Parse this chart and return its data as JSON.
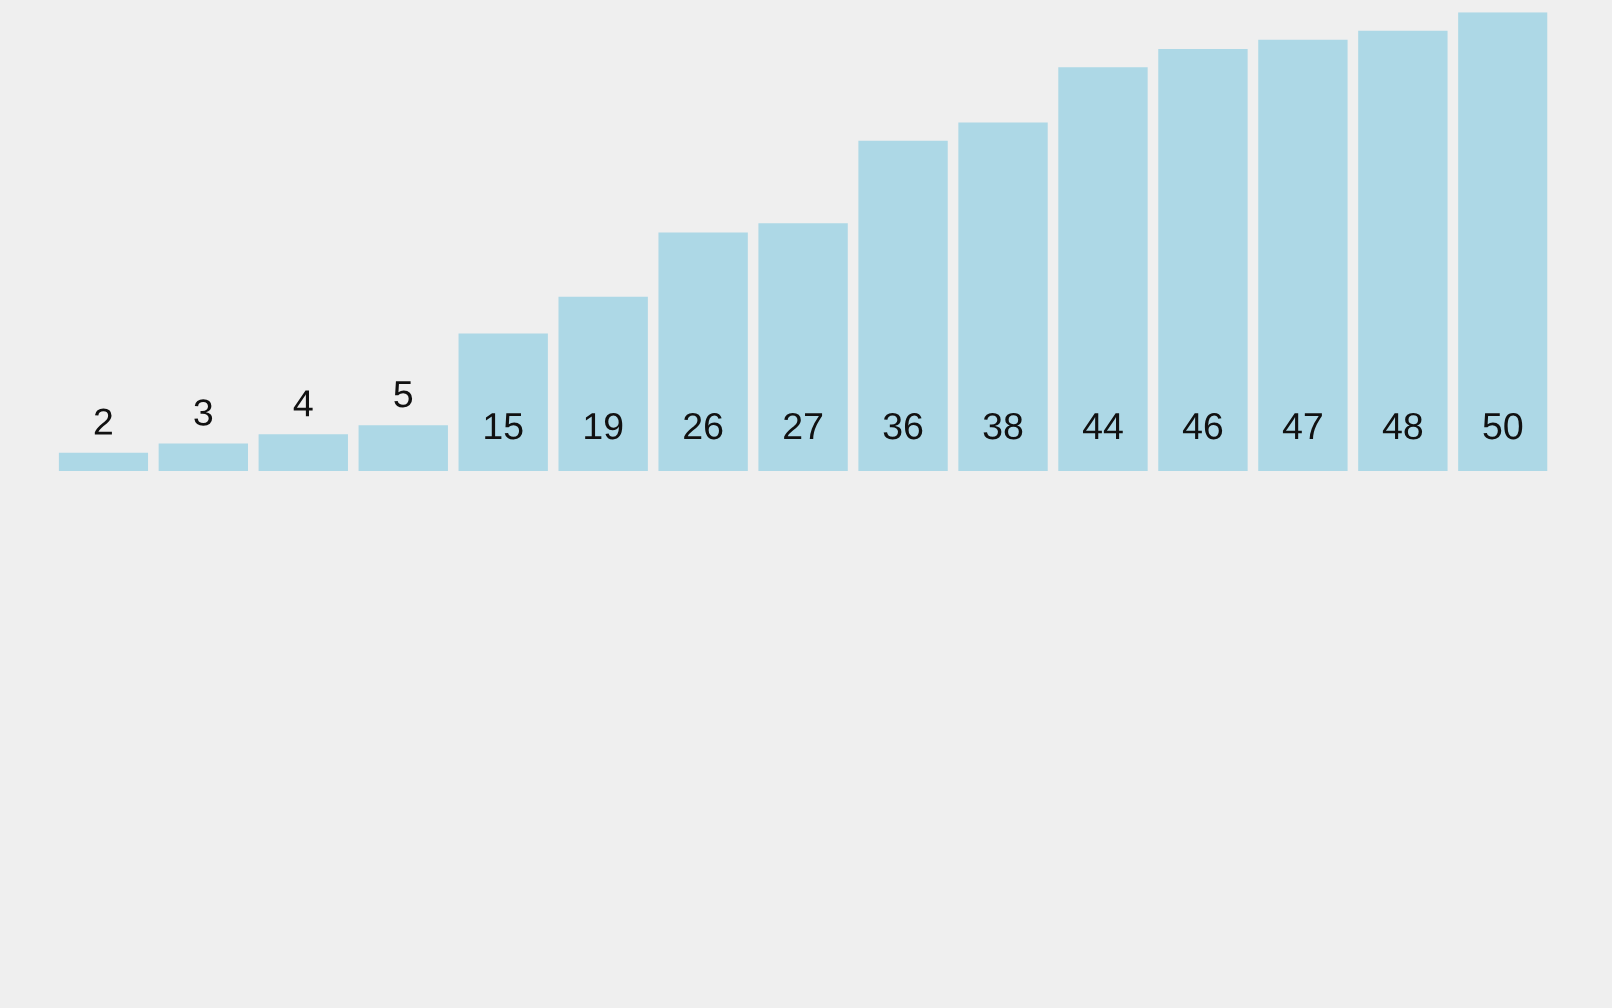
{
  "chart_data": {
    "type": "bar",
    "relative": false,
    "categories": [
      null,
      null,
      null,
      null,
      null,
      null,
      null,
      null,
      null,
      null,
      null,
      null,
      null,
      null,
      null
    ],
    "values": [
      2,
      3,
      4,
      5,
      15,
      19,
      26,
      27,
      36,
      38,
      44,
      46,
      47,
      48,
      50
    ],
    "color": "#add8e6",
    "data_labels": true,
    "grid": false,
    "legend": false,
    "tick_labels": false
  }
}
